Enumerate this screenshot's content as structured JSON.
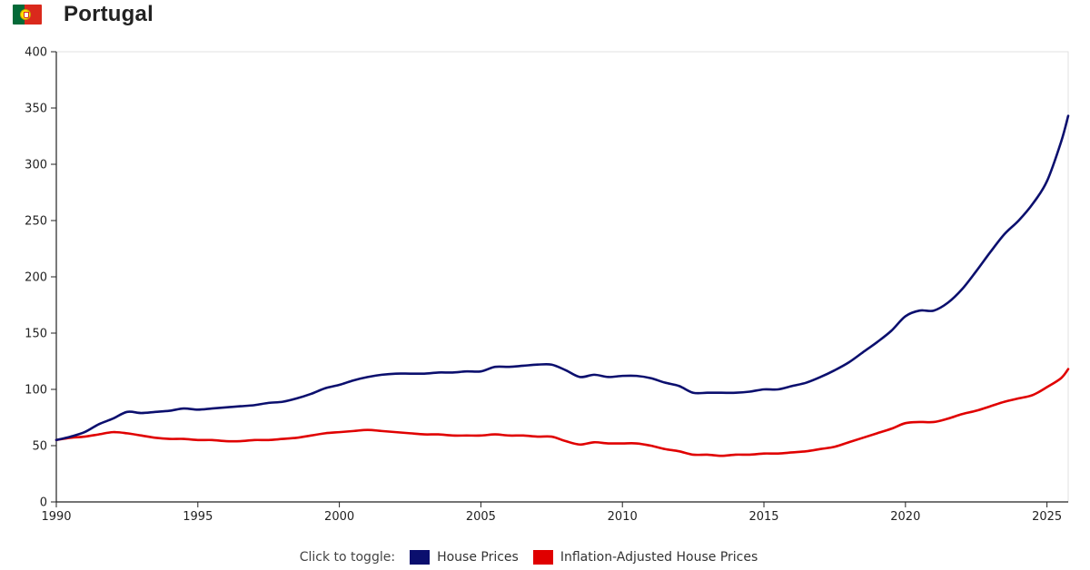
{
  "header": {
    "title": "Portugal",
    "flag_icon": "portugal-flag-icon"
  },
  "legend": {
    "hint": "Click to toggle:",
    "items": [
      {
        "label": "House Prices",
        "color": "#0b0f6e"
      },
      {
        "label": "Inflation-Adjusted House Prices",
        "color": "#e00000"
      }
    ]
  },
  "chart_data": {
    "type": "line",
    "title": "",
    "xlabel": "",
    "ylabel": "",
    "xlim": [
      1990,
      2025.75
    ],
    "ylim": [
      0,
      400
    ],
    "x_ticks": [
      1990,
      1995,
      2000,
      2005,
      2010,
      2015,
      2020,
      2025
    ],
    "y_ticks": [
      0,
      50,
      100,
      150,
      200,
      250,
      300,
      350,
      400
    ],
    "grid": false,
    "legend_position": "bottom",
    "series": [
      {
        "name": "House Prices",
        "color": "#0b0f6e",
        "points": [
          [
            1990,
            55
          ],
          [
            1990.5,
            58
          ],
          [
            1991,
            62
          ],
          [
            1991.5,
            69
          ],
          [
            1992,
            74
          ],
          [
            1992.5,
            80
          ],
          [
            1993,
            79
          ],
          [
            1993.5,
            80
          ],
          [
            1994,
            81
          ],
          [
            1994.5,
            83
          ],
          [
            1995,
            82
          ],
          [
            1995.5,
            83
          ],
          [
            1996,
            84
          ],
          [
            1996.5,
            85
          ],
          [
            1997,
            86
          ],
          [
            1997.5,
            88
          ],
          [
            1998,
            89
          ],
          [
            1998.5,
            92
          ],
          [
            1999,
            96
          ],
          [
            1999.5,
            101
          ],
          [
            2000,
            104
          ],
          [
            2000.5,
            108
          ],
          [
            2001,
            111
          ],
          [
            2001.5,
            113
          ],
          [
            2002,
            114
          ],
          [
            2002.5,
            114
          ],
          [
            2003,
            114
          ],
          [
            2003.5,
            115
          ],
          [
            2004,
            115
          ],
          [
            2004.5,
            116
          ],
          [
            2005,
            116
          ],
          [
            2005.5,
            120
          ],
          [
            2006,
            120
          ],
          [
            2006.5,
            121
          ],
          [
            2007,
            122
          ],
          [
            2007.5,
            122
          ],
          [
            2008,
            117
          ],
          [
            2008.5,
            111
          ],
          [
            2009,
            113
          ],
          [
            2009.5,
            111
          ],
          [
            2010,
            112
          ],
          [
            2010.5,
            112
          ],
          [
            2011,
            110
          ],
          [
            2011.5,
            106
          ],
          [
            2012,
            103
          ],
          [
            2012.5,
            97
          ],
          [
            2013,
            97
          ],
          [
            2013.5,
            97
          ],
          [
            2014,
            97
          ],
          [
            2014.5,
            98
          ],
          [
            2015,
            100
          ],
          [
            2015.5,
            100
          ],
          [
            2016,
            103
          ],
          [
            2016.5,
            106
          ],
          [
            2017,
            111
          ],
          [
            2017.5,
            117
          ],
          [
            2018,
            124
          ],
          [
            2018.5,
            133
          ],
          [
            2019,
            142
          ],
          [
            2019.5,
            152
          ],
          [
            2020,
            165
          ],
          [
            2020.5,
            170
          ],
          [
            2021,
            170
          ],
          [
            2021.5,
            177
          ],
          [
            2022,
            189
          ],
          [
            2022.5,
            205
          ],
          [
            2023,
            222
          ],
          [
            2023.5,
            238
          ],
          [
            2024,
            250
          ],
          [
            2024.5,
            265
          ],
          [
            2025,
            285
          ],
          [
            2025.5,
            320
          ],
          [
            2025.75,
            343
          ]
        ]
      },
      {
        "name": "Inflation-Adjusted House Prices",
        "color": "#e00000",
        "points": [
          [
            1990,
            55
          ],
          [
            1990.5,
            57
          ],
          [
            1991,
            58
          ],
          [
            1991.5,
            60
          ],
          [
            1992,
            62
          ],
          [
            1992.5,
            61
          ],
          [
            1993,
            59
          ],
          [
            1993.5,
            57
          ],
          [
            1994,
            56
          ],
          [
            1994.5,
            56
          ],
          [
            1995,
            55
          ],
          [
            1995.5,
            55
          ],
          [
            1996,
            54
          ],
          [
            1996.5,
            54
          ],
          [
            1997,
            55
          ],
          [
            1997.5,
            55
          ],
          [
            1998,
            56
          ],
          [
            1998.5,
            57
          ],
          [
            1999,
            59
          ],
          [
            1999.5,
            61
          ],
          [
            2000,
            62
          ],
          [
            2000.5,
            63
          ],
          [
            2001,
            64
          ],
          [
            2001.5,
            63
          ],
          [
            2002,
            62
          ],
          [
            2002.5,
            61
          ],
          [
            2003,
            60
          ],
          [
            2003.5,
            60
          ],
          [
            2004,
            59
          ],
          [
            2004.5,
            59
          ],
          [
            2005,
            59
          ],
          [
            2005.5,
            60
          ],
          [
            2006,
            59
          ],
          [
            2006.5,
            59
          ],
          [
            2007,
            58
          ],
          [
            2007.5,
            58
          ],
          [
            2008,
            54
          ],
          [
            2008.5,
            51
          ],
          [
            2009,
            53
          ],
          [
            2009.5,
            52
          ],
          [
            2010,
            52
          ],
          [
            2010.5,
            52
          ],
          [
            2011,
            50
          ],
          [
            2011.5,
            47
          ],
          [
            2012,
            45
          ],
          [
            2012.5,
            42
          ],
          [
            2013,
            42
          ],
          [
            2013.5,
            41
          ],
          [
            2014,
            42
          ],
          [
            2014.5,
            42
          ],
          [
            2015,
            43
          ],
          [
            2015.5,
            43
          ],
          [
            2016,
            44
          ],
          [
            2016.5,
            45
          ],
          [
            2017,
            47
          ],
          [
            2017.5,
            49
          ],
          [
            2018,
            53
          ],
          [
            2018.5,
            57
          ],
          [
            2019,
            61
          ],
          [
            2019.5,
            65
          ],
          [
            2020,
            70
          ],
          [
            2020.5,
            71
          ],
          [
            2021,
            71
          ],
          [
            2021.5,
            74
          ],
          [
            2022,
            78
          ],
          [
            2022.5,
            81
          ],
          [
            2023,
            85
          ],
          [
            2023.5,
            89
          ],
          [
            2024,
            92
          ],
          [
            2024.5,
            95
          ],
          [
            2025,
            102
          ],
          [
            2025.5,
            110
          ],
          [
            2025.75,
            118
          ]
        ]
      }
    ]
  }
}
